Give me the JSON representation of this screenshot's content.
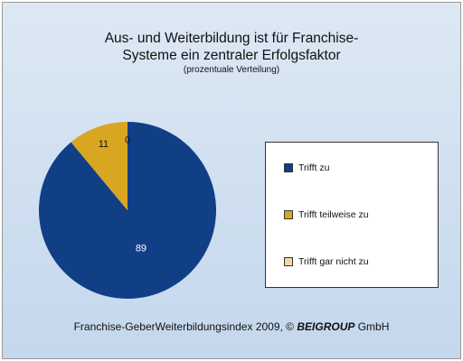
{
  "chart_data": {
    "type": "pie",
    "title": "Aus- und Weiterbildung ist für Franchise- Systeme ein zentraler Erfolgsfaktor",
    "title_lines": [
      "Aus- und Weiterbildung ist für Franchise-",
      "Systeme ein zentraler Erfolgsfaktor"
    ],
    "subtitle": "(prozentuale Verteilung)",
    "categories": [
      "Trifft zu",
      "Trifft teilweise zu",
      "Trifft gar nicht zu"
    ],
    "values": [
      89,
      11,
      0
    ],
    "data_labels": [
      "89",
      "11",
      "0"
    ],
    "colors": [
      "#113f86",
      "#d9a622",
      "#f3d9a0"
    ],
    "legend_position": "right"
  },
  "footer": {
    "text": "Franchise-GeberWeiterbildungsindex 2009,  © ",
    "brand_bold": "BEI",
    "brand_rest": "GROUP",
    "suffix": " GmbH"
  }
}
